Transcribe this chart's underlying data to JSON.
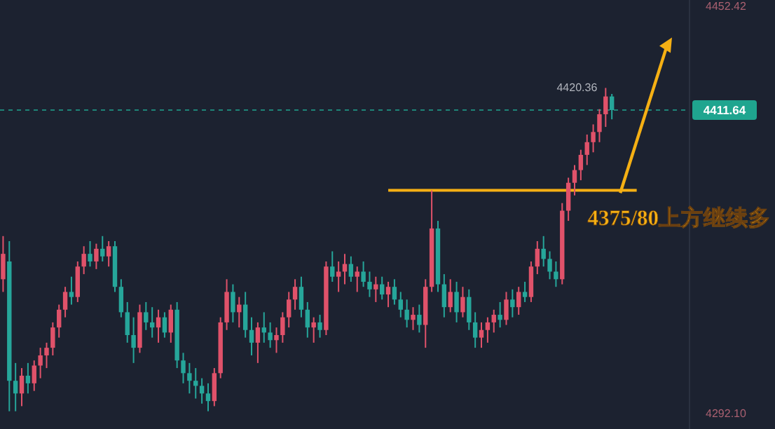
{
  "chart_data": {
    "type": "candlestick",
    "categories": [
      null,
      null,
      null,
      null,
      null,
      null,
      null,
      null,
      null,
      null,
      null,
      null,
      null,
      null,
      null,
      null,
      null,
      null,
      null,
      null,
      null,
      null,
      null,
      null,
      null,
      null,
      null,
      null,
      null,
      null,
      null,
      null,
      null,
      null,
      null,
      null,
      null,
      null,
      null,
      null,
      null,
      null,
      null,
      null,
      null,
      null,
      null,
      null,
      null,
      null,
      null,
      null,
      null,
      null,
      null,
      null,
      null,
      null,
      null,
      null,
      null,
      null,
      null,
      null,
      null,
      null,
      null,
      null,
      null,
      null,
      null,
      null,
      null,
      null,
      null,
      null,
      null,
      null,
      null,
      null,
      null,
      null,
      null,
      null,
      null,
      null,
      null,
      null,
      null,
      null,
      null,
      null,
      null,
      null,
      null,
      null,
      null,
      null,
      null,
      null,
      null,
      null,
      null,
      null,
      null,
      null,
      null,
      null,
      null,
      null,
      null
    ],
    "ohlc": [
      [
        4345,
        4362,
        4340,
        4355
      ],
      [
        4352,
        4360,
        4293,
        4305
      ],
      [
        4305,
        4312,
        4293,
        4300
      ],
      [
        4300,
        4310,
        4295,
        4307
      ],
      [
        4307,
        4312,
        4300,
        4304
      ],
      [
        4304,
        4313,
        4301,
        4311
      ],
      [
        4311,
        4318,
        4306,
        4315
      ],
      [
        4315,
        4320,
        4310,
        4318
      ],
      [
        4318,
        4328,
        4315,
        4326
      ],
      [
        4326,
        4335,
        4322,
        4333
      ],
      [
        4333,
        4342,
        4330,
        4340
      ],
      [
        4340,
        4346,
        4335,
        4338
      ],
      [
        4338,
        4352,
        4336,
        4350
      ],
      [
        4350,
        4358,
        4347,
        4355
      ],
      [
        4355,
        4360,
        4350,
        4352
      ],
      [
        4352,
        4359,
        4349,
        4357
      ],
      [
        4357,
        4362,
        4352,
        4354
      ],
      [
        4354,
        4360,
        4350,
        4358
      ],
      [
        4358,
        4360,
        4340,
        4342
      ],
      [
        4342,
        4345,
        4330,
        4332
      ],
      [
        4332,
        4336,
        4320,
        4323
      ],
      [
        4323,
        4330,
        4312,
        4318
      ],
      [
        4318,
        4335,
        4316,
        4332
      ],
      [
        4332,
        4336,
        4325,
        4328
      ],
      [
        4328,
        4334,
        4322,
        4326
      ],
      [
        4326,
        4333,
        4320,
        4330
      ],
      [
        4330,
        4332,
        4322,
        4324
      ],
      [
        4324,
        4335,
        4320,
        4333
      ],
      [
        4333,
        4336,
        4310,
        4313
      ],
      [
        4313,
        4316,
        4304,
        4308
      ],
      [
        4308,
        4312,
        4300,
        4305
      ],
      [
        4305,
        4310,
        4298,
        4303
      ],
      [
        4303,
        4306,
        4296,
        4300
      ],
      [
        4300,
        4304,
        4293,
        4297
      ],
      [
        4297,
        4310,
        4295,
        4308
      ],
      [
        4308,
        4330,
        4306,
        4328
      ],
      [
        4328,
        4345,
        4325,
        4340
      ],
      [
        4340,
        4343,
        4328,
        4332
      ],
      [
        4332,
        4338,
        4326,
        4335
      ],
      [
        4335,
        4340,
        4322,
        4325
      ],
      [
        4325,
        4330,
        4315,
        4320
      ],
      [
        4320,
        4328,
        4312,
        4326
      ],
      [
        4326,
        4332,
        4320,
        4324
      ],
      [
        4324,
        4328,
        4318,
        4321
      ],
      [
        4321,
        4326,
        4316,
        4323
      ],
      [
        4323,
        4332,
        4320,
        4330
      ],
      [
        4330,
        4340,
        4326,
        4337
      ],
      [
        4337,
        4345,
        4333,
        4342
      ],
      [
        4342,
        4346,
        4330,
        4333
      ],
      [
        4333,
        4336,
        4322,
        4326
      ],
      [
        4326,
        4330,
        4320,
        4328
      ],
      [
        4328,
        4331,
        4322,
        4325
      ],
      [
        4325,
        4352,
        4323,
        4350
      ],
      [
        4350,
        4356,
        4344,
        4346
      ],
      [
        4346,
        4352,
        4340,
        4348
      ],
      [
        4348,
        4355,
        4343,
        4351
      ],
      [
        4351,
        4354,
        4344,
        4346
      ],
      [
        4346,
        4350,
        4340,
        4348
      ],
      [
        4348,
        4352,
        4342,
        4344
      ],
      [
        4344,
        4348,
        4338,
        4341
      ],
      [
        4341,
        4346,
        4336,
        4343
      ],
      [
        4343,
        4346,
        4337,
        4339
      ],
      [
        4339,
        4344,
        4334,
        4342
      ],
      [
        4342,
        4345,
        4335,
        4337
      ],
      [
        4337,
        4340,
        4330,
        4333
      ],
      [
        4333,
        4337,
        4326,
        4329
      ],
      [
        4329,
        4334,
        4325,
        4331
      ],
      [
        4331,
        4335,
        4324,
        4327
      ],
      [
        4327,
        4345,
        4318,
        4342
      ],
      [
        4342,
        4380,
        4340,
        4365
      ],
      [
        4365,
        4368,
        4340,
        4343
      ],
      [
        4343,
        4347,
        4330,
        4334
      ],
      [
        4334,
        4345,
        4332,
        4340
      ],
      [
        4340,
        4344,
        4328,
        4332
      ],
      [
        4332,
        4342,
        4330,
        4338
      ],
      [
        4338,
        4341,
        4325,
        4328
      ],
      [
        4328,
        4332,
        4318,
        4322
      ],
      [
        4322,
        4328,
        4318,
        4325
      ],
      [
        4325,
        4330,
        4320,
        4328
      ],
      [
        4328,
        4333,
        4324,
        4331
      ],
      [
        4331,
        4336,
        4326,
        4329
      ],
      [
        4329,
        4340,
        4327,
        4337
      ],
      [
        4337,
        4341,
        4330,
        4334
      ],
      [
        4334,
        4342,
        4331,
        4340
      ],
      [
        4340,
        4344,
        4336,
        4338
      ],
      [
        4338,
        4352,
        4336,
        4350
      ],
      [
        4350,
        4360,
        4347,
        4357
      ],
      [
        4357,
        4362,
        4350,
        4353
      ],
      [
        4353,
        4356,
        4345,
        4348
      ],
      [
        4348,
        4352,
        4342,
        4345
      ],
      [
        4345,
        4375,
        4343,
        4372
      ],
      [
        4372,
        4385,
        4368,
        4383
      ],
      [
        4383,
        4390,
        4378,
        4388
      ],
      [
        4388,
        4396,
        4384,
        4394
      ],
      [
        4394,
        4402,
        4390,
        4399
      ],
      [
        4399,
        4406,
        4395,
        4403
      ],
      [
        4403,
        4412,
        4399,
        4410
      ],
      [
        4410,
        4420.36,
        4405,
        4417
      ],
      [
        4417,
        4418,
        4408,
        4411.64
      ],
      null,
      null,
      null,
      null,
      null,
      null,
      null,
      null,
      null,
      null,
      null,
      null
    ],
    "ylim": [
      4286,
      4455
    ],
    "yticks": [
      4452.42,
      {
        "value": 4292.1,
        "label": "4292.10"
      }
    ],
    "tick_labels": "y",
    "ref_lines": [
      {
        "axis": "y",
        "value": 4380,
        "label": "4375/80上方继续多",
        "color": "#f5b014"
      },
      {
        "axis": "y",
        "value": 4411.64,
        "label": "4411.64",
        "color": "#1fa58f",
        "line_style": "dashed"
      }
    ],
    "annotations": [
      "4420.36"
    ]
  }
}
